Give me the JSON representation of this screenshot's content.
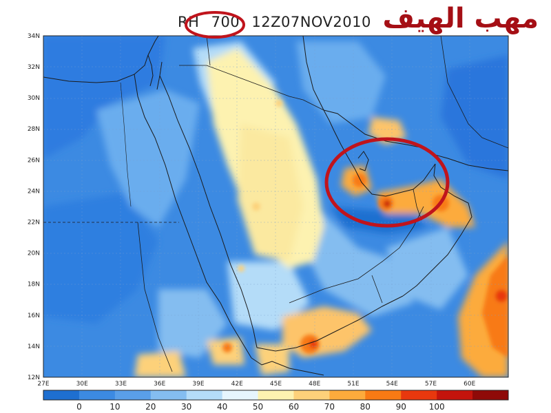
{
  "title": {
    "field": "RH",
    "level": "700",
    "time": "12Z07NOV2010"
  },
  "overlay_text": "مهب الهيف",
  "map": {
    "lon_labels": [
      "27E",
      "30E",
      "33E",
      "36E",
      "39E",
      "42E",
      "45E",
      "48E",
      "51E",
      "54E",
      "57E",
      "60E"
    ],
    "lat_labels": [
      "12N",
      "14N",
      "16N",
      "18N",
      "20N",
      "22N",
      "24N",
      "26N",
      "28N",
      "30N",
      "32N",
      "34N"
    ],
    "region": "Arabian Peninsula"
  },
  "colorbar": {
    "labels": [
      "0",
      "10",
      "20",
      "30",
      "40",
      "50",
      "60",
      "70",
      "80",
      "90",
      "100"
    ],
    "colors": [
      "#1e6fd0",
      "#3c8ae2",
      "#5a9fe8",
      "#84bdf0",
      "#b4dcf8",
      "#e6f5fd",
      "#fdf2b0",
      "#fdd17a",
      "#fcab3c",
      "#f87a14",
      "#e8380e",
      "#c4140c",
      "#8f0a08"
    ]
  },
  "annotation_colors": {
    "circle": "#c0141c"
  }
}
